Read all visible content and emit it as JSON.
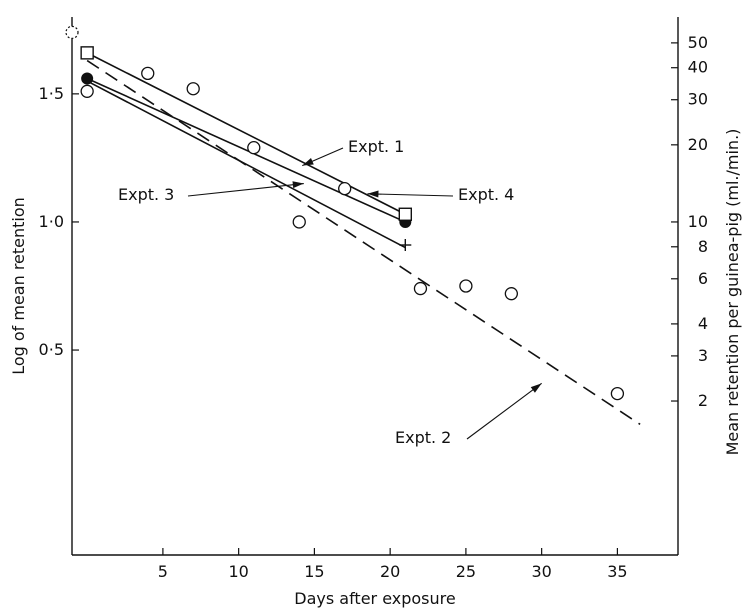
{
  "chart_data": {
    "type": "scatter",
    "xlabel": "Days after exposure",
    "ylabel": "Log of mean retention",
    "ylabel_right": "Mean retention per guinea-pig (ml./min.)",
    "xlim": [
      -1,
      39
    ],
    "ylim": [
      -0.3,
      1.8
    ],
    "x_ticks": [
      {
        "value": 5,
        "label": "5"
      },
      {
        "value": 10,
        "label": "10"
      },
      {
        "value": 15,
        "label": "15"
      },
      {
        "value": 20,
        "label": "20"
      },
      {
        "value": 25,
        "label": "25"
      },
      {
        "value": 30,
        "label": "30"
      },
      {
        "value": 35,
        "label": "35"
      }
    ],
    "y_ticks": [
      {
        "value": 0.5,
        "label": "0·5"
      },
      {
        "value": 1.0,
        "label": "1·0"
      },
      {
        "value": 1.5,
        "label": "1·5"
      }
    ],
    "y2_ticks": [
      {
        "value": 2,
        "label": "2"
      },
      {
        "value": 3,
        "label": "3"
      },
      {
        "value": 4,
        "label": "4"
      },
      {
        "value": 6,
        "label": "6"
      },
      {
        "value": 8,
        "label": "8"
      },
      {
        "value": 10,
        "label": "10"
      },
      {
        "value": 20,
        "label": "20"
      },
      {
        "value": 30,
        "label": "30"
      },
      {
        "value": 40,
        "label": "40"
      },
      {
        "value": 50,
        "label": "50"
      }
    ],
    "series": [
      {
        "name": "Expt. 1",
        "line": {
          "style": "solid",
          "x": [
            0,
            21
          ],
          "y": [
            1.56,
            1.0
          ]
        },
        "points": [
          {
            "x": 0,
            "y": 1.56,
            "marker": "filled-circle"
          },
          {
            "x": 21,
            "y": 1.0,
            "marker": "filled-circle"
          }
        ]
      },
      {
        "name": "Expt. 2",
        "line": {
          "style": "dashed",
          "x": [
            0,
            36.5
          ],
          "y": [
            1.63,
            0.21
          ]
        },
        "points": [
          {
            "x": 0,
            "y": 1.51,
            "marker": "open-circle"
          },
          {
            "x": 4,
            "y": 1.58,
            "marker": "open-circle"
          },
          {
            "x": 7,
            "y": 1.52,
            "marker": "open-circle"
          },
          {
            "x": 11,
            "y": 1.29,
            "marker": "open-circle"
          },
          {
            "x": 14,
            "y": 1.0,
            "marker": "open-circle"
          },
          {
            "x": 17,
            "y": 1.13,
            "marker": "open-circle"
          },
          {
            "x": 22,
            "y": 0.74,
            "marker": "open-circle"
          },
          {
            "x": 25,
            "y": 0.75,
            "marker": "open-circle"
          },
          {
            "x": 28,
            "y": 0.72,
            "marker": "open-circle"
          },
          {
            "x": 35,
            "y": 0.33,
            "marker": "open-circle"
          },
          {
            "x": -1,
            "y": 1.74,
            "marker": "dotted-circle"
          }
        ]
      },
      {
        "name": "Expt. 3",
        "line": {
          "style": "solid",
          "x": [
            0,
            21
          ],
          "y": [
            1.55,
            0.9
          ]
        },
        "points": [
          {
            "x": 21,
            "y": 0.91,
            "marker": "plus"
          }
        ]
      },
      {
        "name": "Expt. 4",
        "line": {
          "style": "solid",
          "x": [
            0,
            21
          ],
          "y": [
            1.66,
            1.03
          ]
        },
        "points": [
          {
            "x": 0,
            "y": 1.66,
            "marker": "open-square"
          },
          {
            "x": 21,
            "y": 1.03,
            "marker": "open-square"
          }
        ]
      }
    ],
    "annotations": [
      {
        "text": "Expt. 1",
        "arrow_to": {
          "x": 14.2,
          "y": 1.22
        }
      },
      {
        "text": "Expt. 4",
        "arrow_to": {
          "x": 18.5,
          "y": 1.11
        }
      },
      {
        "text": "Expt. 3",
        "arrow_to": {
          "x": 14.3,
          "y": 1.15
        }
      },
      {
        "text": "Expt. 2",
        "arrow_to": {
          "x": 30,
          "y": 0.37
        }
      }
    ],
    "grid": false,
    "legend": "none"
  }
}
